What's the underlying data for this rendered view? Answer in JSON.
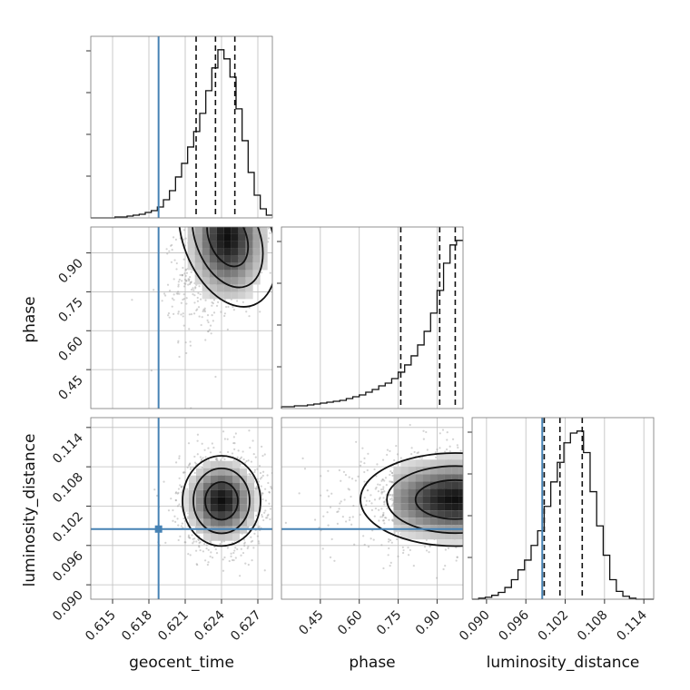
{
  "chart_data": {
    "type": "corner",
    "colors": {
      "truth": "#4682b4",
      "line": "#111111",
      "grid": "#bdbdbd",
      "samples": "#9e9e9e"
    },
    "parameters": [
      {
        "key": "geocent_time",
        "label": "geocent_time",
        "range": [
          0.6132,
          0.6282
        ],
        "ticks": [
          0.615,
          0.618,
          0.621,
          0.624,
          0.627
        ],
        "tick_labels": [
          "0.615",
          "0.618",
          "0.621",
          "0.624",
          "0.627"
        ],
        "truth": 0.6188,
        "quantiles": [
          0.6219,
          0.6235,
          0.6251
        ]
      },
      {
        "key": "phase",
        "label": "phase",
        "range": [
          0.3,
          1.0
        ],
        "ticks": [
          0.45,
          0.6,
          0.75,
          0.9
        ],
        "tick_labels": [
          "0.45",
          "0.60",
          "0.75",
          "0.90"
        ],
        "truth": null,
        "quantiles": [
          0.76,
          0.91,
          0.97
        ]
      },
      {
        "key": "luminosity_distance",
        "label": "luminosity_distance",
        "range": [
          0.0878,
          0.1155
        ],
        "ticks": [
          0.09,
          0.096,
          0.102,
          0.108,
          0.114
        ],
        "tick_labels": [
          "0.090",
          "0.096",
          "0.102",
          "0.108",
          "0.114"
        ],
        "truth": 0.0985,
        "quantiles": [
          0.0988,
          0.1012,
          0.1046
        ]
      }
    ],
    "histograms": [
      {
        "parameter": "geocent_time",
        "bin_edges": [
          0.6132,
          0.6137,
          0.6142,
          0.6147,
          0.6152,
          0.6157,
          0.6162,
          0.6167,
          0.6172,
          0.6177,
          0.6182,
          0.6187,
          0.6192,
          0.6197,
          0.6202,
          0.6207,
          0.6212,
          0.6217,
          0.6222,
          0.6227,
          0.6232,
          0.6237,
          0.6242,
          0.6247,
          0.6252,
          0.6257,
          0.6262,
          0.6267,
          0.6272,
          0.6277,
          0.6282
        ],
        "counts": [
          0,
          0,
          0,
          0,
          1,
          1,
          2,
          3,
          4,
          6,
          8,
          12,
          20,
          30,
          45,
          60,
          78,
          95,
          115,
          140,
          165,
          185,
          175,
          155,
          120,
          85,
          50,
          25,
          10,
          3
        ]
      },
      {
        "parameter": "phase",
        "bin_edges": [
          0.3,
          0.325,
          0.35,
          0.375,
          0.4,
          0.425,
          0.45,
          0.475,
          0.5,
          0.525,
          0.55,
          0.575,
          0.6,
          0.625,
          0.65,
          0.675,
          0.7,
          0.725,
          0.75,
          0.775,
          0.8,
          0.825,
          0.85,
          0.875,
          0.9,
          0.925,
          0.95,
          0.975,
          1.0
        ],
        "counts": [
          2,
          2,
          3,
          3,
          4,
          5,
          6,
          7,
          8,
          9,
          11,
          13,
          15,
          18,
          21,
          25,
          28,
          33,
          40,
          48,
          58,
          70,
          85,
          105,
          130,
          160,
          180,
          185
        ]
      },
      {
        "parameter": "luminosity_distance",
        "bin_edges": [
          0.0878,
          0.0888,
          0.0898,
          0.0908,
          0.0918,
          0.0928,
          0.0938,
          0.0948,
          0.0958,
          0.0968,
          0.0978,
          0.0988,
          0.0998,
          0.1008,
          0.1018,
          0.1028,
          0.1038,
          0.1048,
          0.1058,
          0.1068,
          0.1078,
          0.1088,
          0.1098,
          0.1108,
          0.1118,
          0.1128,
          0.1138,
          0.1148,
          0.1155
        ],
        "counts": [
          0,
          1,
          2,
          4,
          7,
          12,
          20,
          30,
          40,
          55,
          70,
          95,
          120,
          140,
          160,
          170,
          172,
          150,
          110,
          75,
          45,
          20,
          8,
          3,
          1,
          0,
          0,
          0
        ]
      }
    ],
    "pairs": [
      {
        "x": "geocent_time",
        "y": "phase",
        "mode": {
          "x": 0.6245,
          "y": 0.96
        },
        "spread": {
          "x": 0.0017,
          "y": 0.13
        },
        "correlation": 0.5
      },
      {
        "x": "geocent_time",
        "y": "luminosity_distance",
        "mode": {
          "x": 0.624,
          "y": 0.1028
        },
        "spread": {
          "x": 0.0015,
          "y": 0.0032
        },
        "correlation": 0.0
      },
      {
        "x": "phase",
        "y": "luminosity_distance",
        "mode": {
          "x": 0.97,
          "y": 0.103
        },
        "spread": {
          "x": 0.17,
          "y": 0.0033
        },
        "correlation": 0.0
      }
    ],
    "grid": true,
    "legend": "none"
  }
}
